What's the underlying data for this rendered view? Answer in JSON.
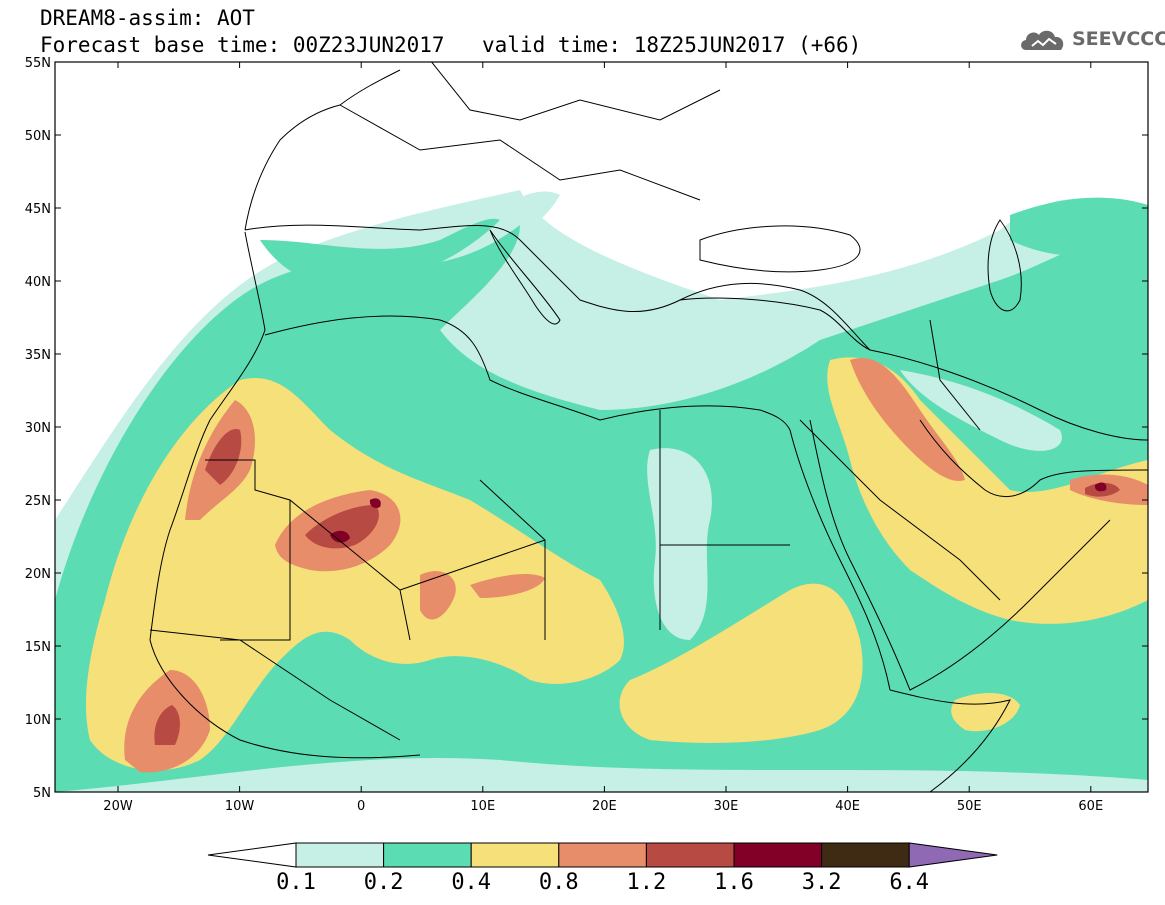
{
  "header": {
    "title_line1": "DREAM8-assim: AOT",
    "title_line2": "Forecast base time: 00Z23JUN2017",
    "valid_time": "valid time: 18Z25JUN2017 (+66)",
    "logo_text": "SEEVCCC"
  },
  "axes": {
    "lon_labels": [
      "20W",
      "10W",
      "0",
      "10E",
      "20E",
      "30E",
      "40E",
      "50E",
      "60E"
    ],
    "lat_labels": [
      "55N",
      "50N",
      "45N",
      "40N",
      "35N",
      "30N",
      "25N",
      "20N",
      "15N",
      "10N",
      "5N"
    ]
  },
  "colorbar": {
    "labels": [
      "0.1",
      "0.2",
      "0.4",
      "0.8",
      "1.2",
      "1.6",
      "3.2",
      "6.4"
    ],
    "colors": [
      "#ffffff",
      "#c6efe6",
      "#5cdcb2",
      "#f5e07a",
      "#e88d6a",
      "#b84a44",
      "#820027",
      "#3f2a14",
      "#8f69b3"
    ]
  },
  "colors": {
    "frame": "#000000",
    "logo": "#6a6a6a"
  }
}
